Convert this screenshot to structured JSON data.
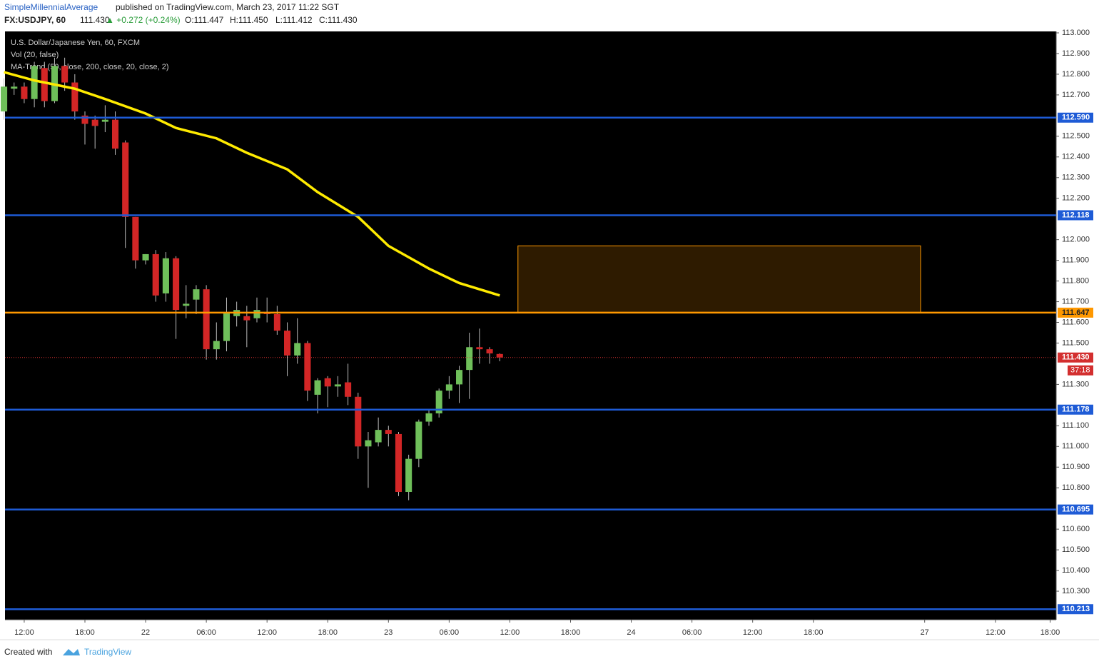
{
  "header": {
    "author": "SimpleMillennialAverage",
    "published": "published on TradingView.com, March 23, 2017 11:22 SGT",
    "symbol": "FX:USDJPY, 60",
    "last": "111.430",
    "change": "▲ +0.272 (+0.24%)",
    "open": "O:111.447",
    "high": "H:111.450",
    "low": "L:111.412",
    "close": "C:111.430"
  },
  "footer": {
    "created": "Created with",
    "brand": "TradingView"
  },
  "chart_data": {
    "type": "candlestick",
    "legend": [
      "U.S. Dollar/Japanese Yen, 60, FXCM",
      "Vol (20, false)",
      "MA-Trend (50, close, 200, close, 20, close, 2)"
    ],
    "x": [
      -2,
      -1,
      0,
      1,
      2,
      3,
      4,
      5,
      6,
      7,
      8,
      9,
      10,
      11,
      12,
      13,
      14,
      15,
      16,
      17,
      18,
      19,
      20,
      21,
      22,
      23,
      24,
      25,
      26,
      27,
      28,
      29,
      30,
      31,
      32,
      33,
      34,
      35,
      36,
      37,
      38,
      39,
      40,
      41,
      42,
      43,
      44,
      45,
      46,
      47
    ],
    "open": [
      112.62,
      112.73,
      112.74,
      112.68,
      112.83,
      112.67,
      112.84,
      112.76,
      112.6,
      112.58,
      112.57,
      112.58,
      112.47,
      112.11,
      111.9,
      111.93,
      111.74,
      111.91,
      111.68,
      111.71,
      111.76,
      111.47,
      111.51,
      111.63,
      111.63,
      111.62,
      111.65,
      111.64,
      111.56,
      111.44,
      111.5,
      111.25,
      111.33,
      111.29,
      111.31,
      111.24,
      111.0,
      111.02,
      111.08,
      111.06,
      110.78,
      110.94,
      111.12,
      111.16,
      111.27,
      111.3,
      111.37,
      111.48,
      111.47,
      111.447
    ],
    "high": [
      112.78,
      112.76,
      112.76,
      112.86,
      112.86,
      112.88,
      112.88,
      112.8,
      112.62,
      112.6,
      112.65,
      112.62,
      112.48,
      112.11,
      111.93,
      111.95,
      111.94,
      111.92,
      111.78,
      111.78,
      111.78,
      111.6,
      111.72,
      111.7,
      111.68,
      111.72,
      111.72,
      111.68,
      111.6,
      111.62,
      111.51,
      111.33,
      111.34,
      111.34,
      111.4,
      111.26,
      111.07,
      111.14,
      111.1,
      111.07,
      110.96,
      111.13,
      111.18,
      111.28,
      111.34,
      111.39,
      111.55,
      111.57,
      111.48,
      111.45
    ],
    "low": [
      112.58,
      112.7,
      112.66,
      112.64,
      112.64,
      112.66,
      112.72,
      112.58,
      112.46,
      112.44,
      112.52,
      112.41,
      111.96,
      111.86,
      111.88,
      111.7,
      111.7,
      111.52,
      111.62,
      111.64,
      111.42,
      111.42,
      111.46,
      111.58,
      111.48,
      111.6,
      111.6,
      111.54,
      111.34,
      111.4,
      111.22,
      111.16,
      111.19,
      111.24,
      111.2,
      110.94,
      110.8,
      111.0,
      111.0,
      110.76,
      110.74,
      110.9,
      111.1,
      111.14,
      111.23,
      111.21,
      111.23,
      111.4,
      111.4,
      111.412
    ],
    "close": [
      112.74,
      112.74,
      112.68,
      112.84,
      112.67,
      112.84,
      112.76,
      112.62,
      112.56,
      112.55,
      112.58,
      112.44,
      112.11,
      111.9,
      111.93,
      111.73,
      111.91,
      111.66,
      111.69,
      111.76,
      111.47,
      111.51,
      111.65,
      111.66,
      111.61,
      111.66,
      111.64,
      111.56,
      111.44,
      111.5,
      111.27,
      111.32,
      111.29,
      111.3,
      111.24,
      111.0,
      111.03,
      111.08,
      111.06,
      110.78,
      110.94,
      111.12,
      111.16,
      111.27,
      111.3,
      111.37,
      111.48,
      111.47,
      111.45,
      111.43
    ],
    "up_color": "#6fbf5a",
    "down_color": "#d32626",
    "ma": {
      "color": "#ffeb00",
      "x": [
        -2,
        1,
        5,
        8,
        12,
        15,
        19,
        22,
        26,
        29,
        33,
        36,
        40,
        43,
        47
      ],
      "values": [
        112.81,
        112.77,
        112.73,
        112.68,
        112.61,
        112.54,
        112.49,
        112.42,
        112.34,
        112.23,
        112.11,
        111.97,
        111.86,
        111.79,
        111.73
      ]
    },
    "levels": [
      {
        "value": 112.59,
        "label": "112.590",
        "color": "#1e5bd6"
      },
      {
        "value": 112.118,
        "label": "112.118",
        "color": "#1e5bd6"
      },
      {
        "value": 111.647,
        "label": "111.647",
        "color": "#ff9800"
      },
      {
        "value": 111.178,
        "label": "111.178",
        "color": "#1e5bd6"
      },
      {
        "value": 110.695,
        "label": "110.695",
        "color": "#1e5bd6"
      },
      {
        "value": 110.213,
        "label": "110.213",
        "color": "#1e5bd6"
      }
    ],
    "price": {
      "value": 111.43,
      "label": "111.430",
      "countdown": "37:18",
      "color": "#d32f2f"
    },
    "zone": {
      "x": [
        48.8,
        88.6
      ],
      "y": [
        111.647,
        111.97
      ],
      "color": "#ff9800"
    },
    "xlim": [
      -1.9,
      102
    ],
    "ylim": [
      110.162,
      113.007
    ],
    "xticks": [
      {
        "value": 0,
        "label": "12:00"
      },
      {
        "value": 6,
        "label": "18:00"
      },
      {
        "value": 12,
        "label": "22"
      },
      {
        "value": 18,
        "label": "06:00"
      },
      {
        "value": 24,
        "label": "12:00"
      },
      {
        "value": 30,
        "label": "18:00"
      },
      {
        "value": 36,
        "label": "23"
      },
      {
        "value": 42,
        "label": "06:00"
      },
      {
        "value": 48,
        "label": "12:00"
      },
      {
        "value": 54,
        "label": "18:00"
      },
      {
        "value": 60,
        "label": "24"
      },
      {
        "value": 66,
        "label": "06:00"
      },
      {
        "value": 72,
        "label": "12:00"
      },
      {
        "value": 78,
        "label": "18:00"
      },
      {
        "value": 89,
        "label": "27"
      },
      {
        "value": 96,
        "label": "12:00"
      },
      {
        "value": 101.4,
        "label": "18:00"
      }
    ],
    "yticks": [
      {
        "value": 113,
        "label": "113.000"
      },
      {
        "value": 112.9,
        "label": "112.900"
      },
      {
        "value": 112.8,
        "label": "112.800"
      },
      {
        "value": 112.7,
        "label": "112.700"
      },
      {
        "value": 112.5,
        "label": "112.500"
      },
      {
        "value": 112.4,
        "label": "112.400"
      },
      {
        "value": 112.3,
        "label": "112.300"
      },
      {
        "value": 112.2,
        "label": "112.200"
      },
      {
        "value": 112,
        "label": "112.000"
      },
      {
        "value": 111.9,
        "label": "111.900"
      },
      {
        "value": 111.8,
        "label": "111.800"
      },
      {
        "value": 111.7,
        "label": "111.700"
      },
      {
        "value": 111.6,
        "label": "111.600"
      },
      {
        "value": 111.5,
        "label": "111.500"
      },
      {
        "value": 111.3,
        "label": "111.300"
      },
      {
        "value": 111.1,
        "label": "111.100"
      },
      {
        "value": 111,
        "label": "111.000"
      },
      {
        "value": 110.9,
        "label": "110.900"
      },
      {
        "value": 110.8,
        "label": "110.800"
      },
      {
        "value": 110.6,
        "label": "110.600"
      },
      {
        "value": 110.5,
        "label": "110.500"
      },
      {
        "value": 110.4,
        "label": "110.400"
      },
      {
        "value": 110.3,
        "label": "110.300"
      }
    ]
  }
}
